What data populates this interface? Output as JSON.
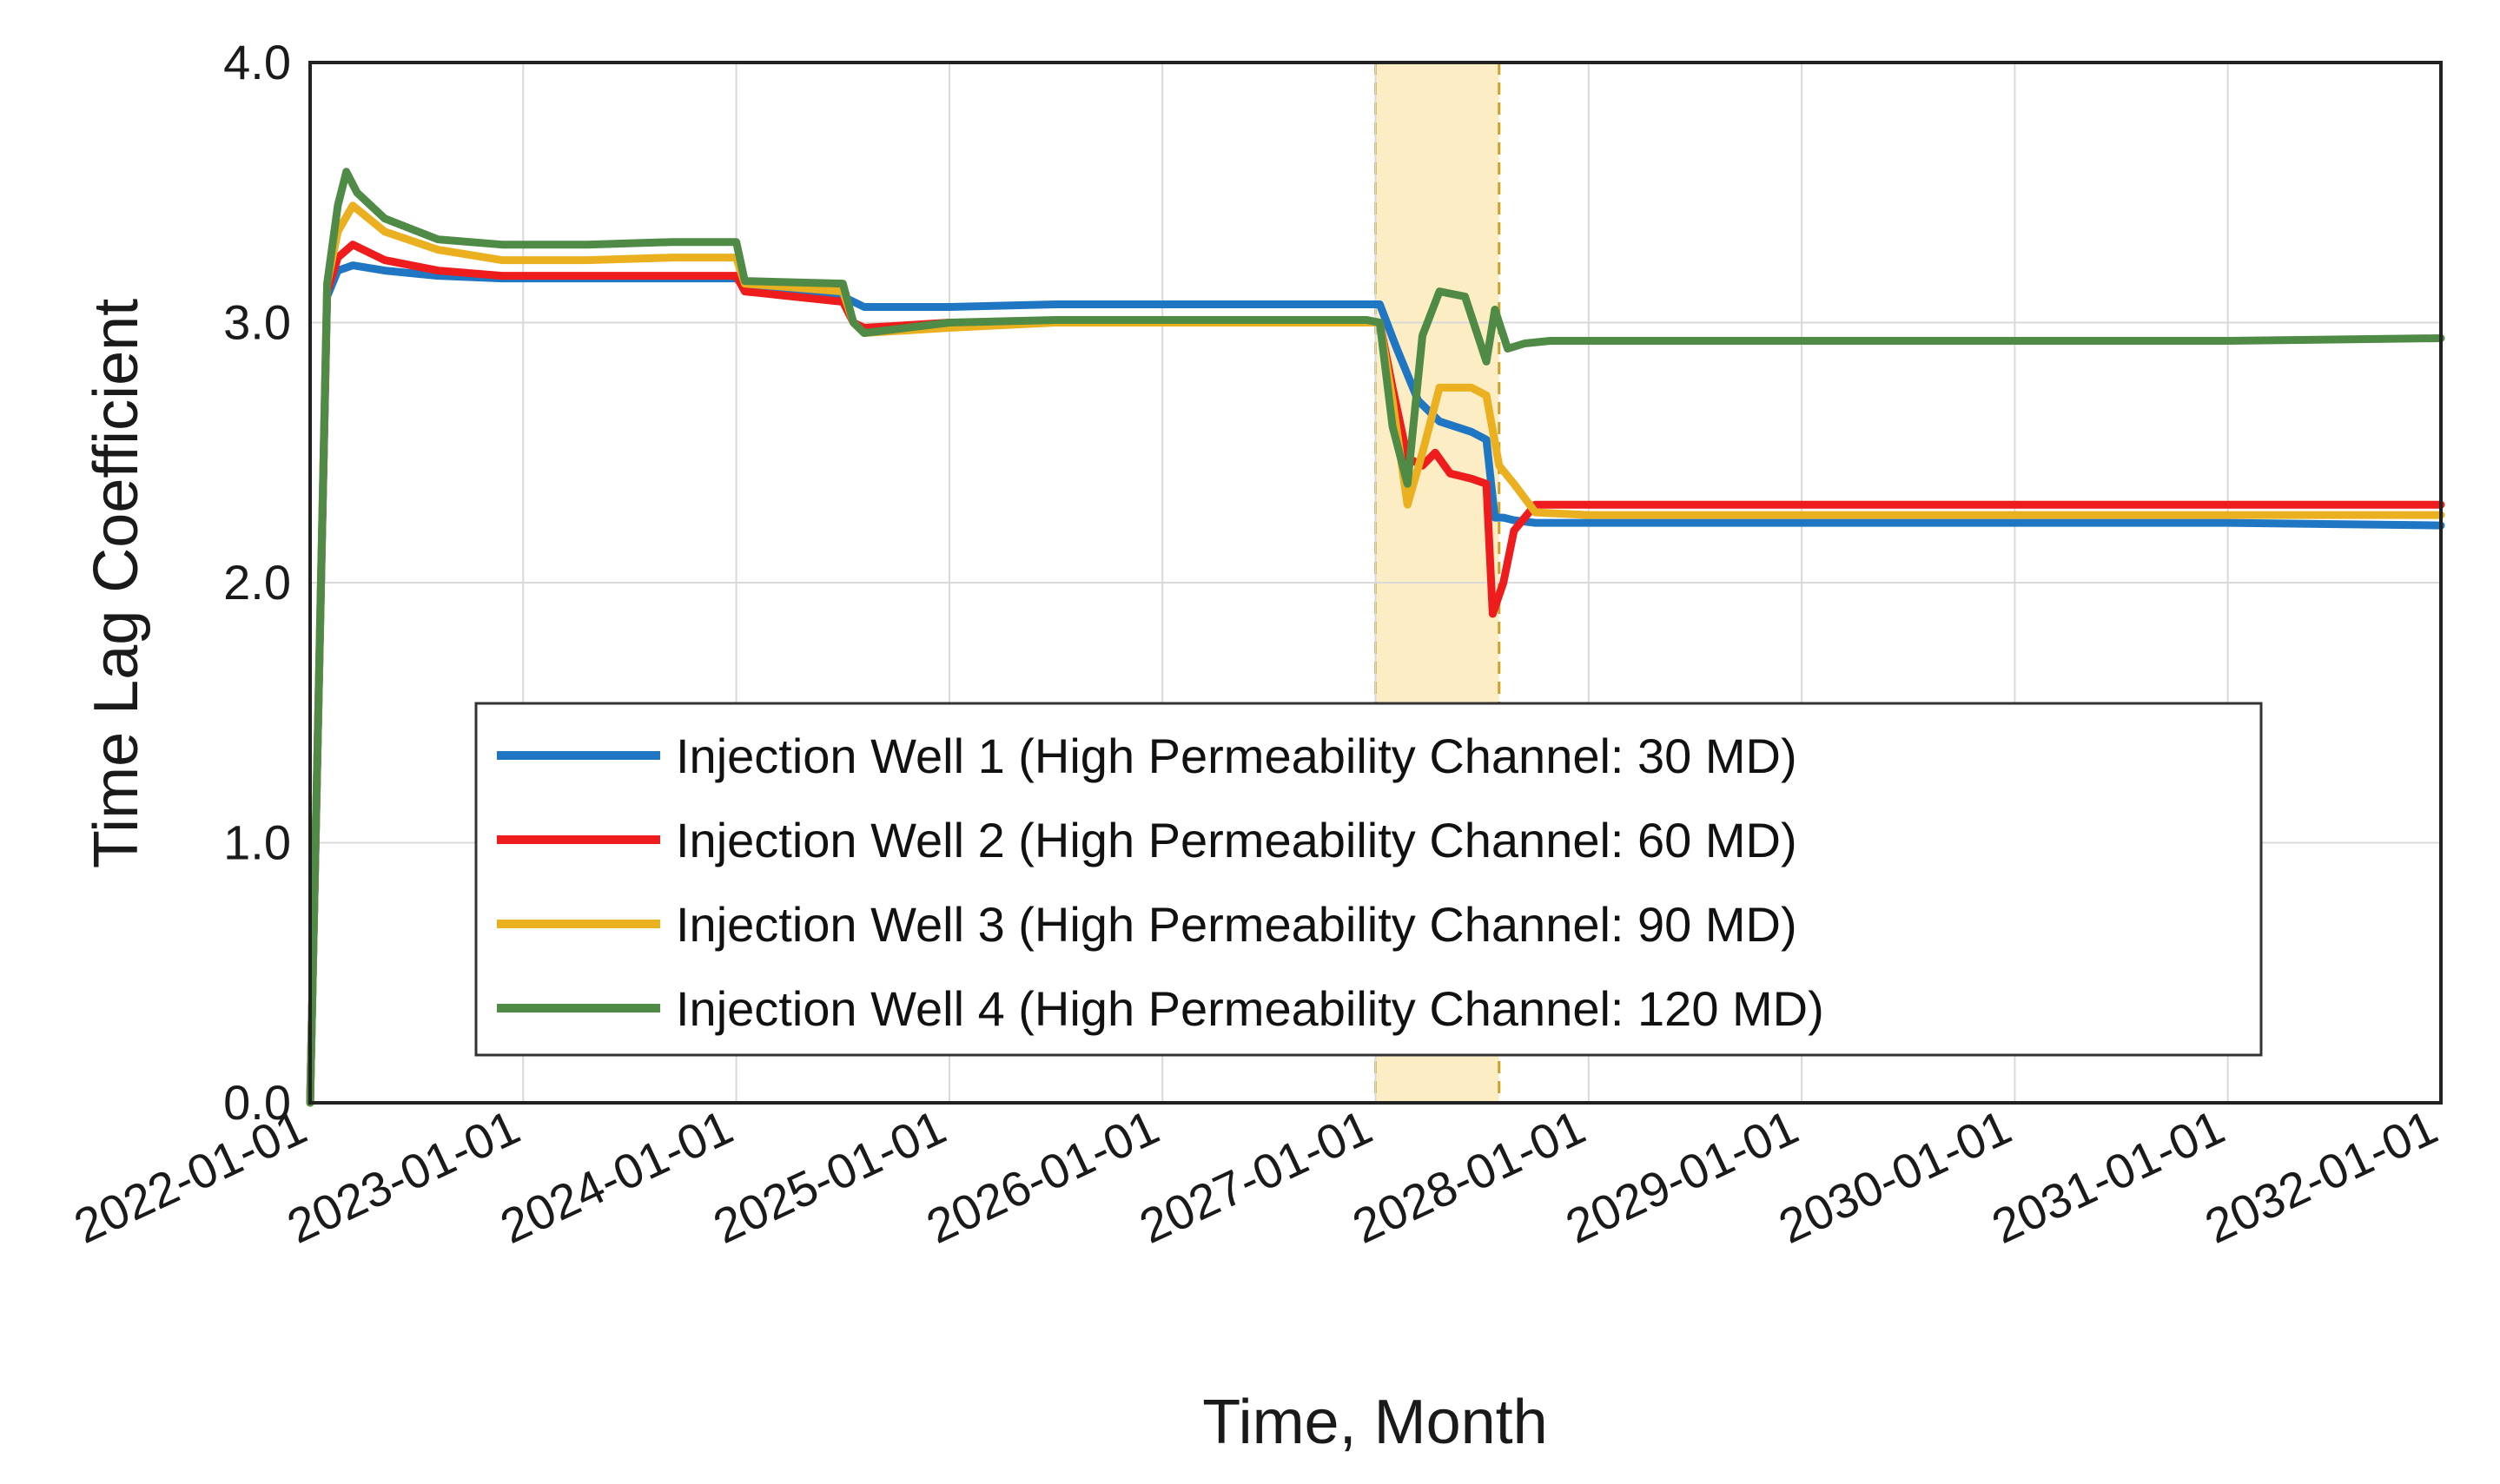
{
  "chart_data": {
    "type": "line",
    "title": "",
    "xlabel": "Time, Month",
    "ylabel": "Time Lag Coefficient",
    "ylim": [
      0,
      4
    ],
    "xlim": [
      2022.0,
      2032.0
    ],
    "grid": true,
    "legend_position": "lower-center",
    "y_ticks": [
      {
        "value": 0,
        "label": "0.0"
      },
      {
        "value": 1,
        "label": "1.0"
      },
      {
        "value": 2,
        "label": "2.0"
      },
      {
        "value": 3,
        "label": "3.0"
      },
      {
        "value": 4,
        "label": "4.0"
      }
    ],
    "x_ticks": [
      {
        "value": 2022,
        "label": "2022-01-01"
      },
      {
        "value": 2023,
        "label": "2023-01-01"
      },
      {
        "value": 2024,
        "label": "2024-01-01"
      },
      {
        "value": 2025,
        "label": "2025-01-01"
      },
      {
        "value": 2026,
        "label": "2026-01-01"
      },
      {
        "value": 2027,
        "label": "2027-01-01"
      },
      {
        "value": 2028,
        "label": "2028-01-01"
      },
      {
        "value": 2029,
        "label": "2029-01-01"
      },
      {
        "value": 2030,
        "label": "2030-01-01"
      },
      {
        "value": 2031,
        "label": "2031-01-01"
      },
      {
        "value": 2032,
        "label": "2032-01-01"
      }
    ],
    "highlight_region": {
      "x_start": 2027.0,
      "x_end": 2027.58,
      "color": "#fcedc4",
      "border_color": "#c9a227"
    },
    "series": [
      {
        "name": "Injection Well 1 (High Permeability Channel: 30 MD)",
        "color": "#1f77c4",
        "x": [
          2022.0,
          2022.08,
          2022.13,
          2022.2,
          2022.35,
          2022.6,
          2022.9,
          2023.3,
          2023.7,
          2024.0,
          2024.04,
          2024.5,
          2024.55,
          2024.6,
          2025.0,
          2025.5,
          2026.0,
          2026.5,
          2026.96,
          2027.02,
          2027.1,
          2027.2,
          2027.3,
          2027.45,
          2027.52,
          2027.56,
          2027.6,
          2027.65,
          2027.75,
          2028.0,
          2029.0,
          2030.0,
          2031.0,
          2032.0
        ],
        "values": [
          0.0,
          3.1,
          3.2,
          3.22,
          3.2,
          3.18,
          3.17,
          3.17,
          3.17,
          3.17,
          3.14,
          3.1,
          3.08,
          3.06,
          3.06,
          3.07,
          3.07,
          3.07,
          3.07,
          3.07,
          2.9,
          2.7,
          2.62,
          2.58,
          2.55,
          2.25,
          2.25,
          2.24,
          2.23,
          2.23,
          2.23,
          2.23,
          2.23,
          2.22
        ]
      },
      {
        "name": "Injection Well 2 (High Permeability Channel: 60 MD)",
        "color": "#ee1c1c",
        "x": [
          2022.0,
          2022.08,
          2022.13,
          2022.2,
          2022.35,
          2022.6,
          2022.9,
          2023.3,
          2023.7,
          2024.0,
          2024.04,
          2024.5,
          2024.55,
          2024.6,
          2025.0,
          2025.5,
          2026.0,
          2026.5,
          2026.96,
          2027.02,
          2027.08,
          2027.15,
          2027.22,
          2027.28,
          2027.35,
          2027.45,
          2027.52,
          2027.55,
          2027.6,
          2027.65,
          2027.75,
          2028.0,
          2029.0,
          2030.0,
          2031.0,
          2032.0
        ],
        "values": [
          0.0,
          3.12,
          3.25,
          3.3,
          3.24,
          3.2,
          3.18,
          3.18,
          3.18,
          3.18,
          3.12,
          3.08,
          3.0,
          2.98,
          3.0,
          3.0,
          3.0,
          3.0,
          3.0,
          3.0,
          2.75,
          2.48,
          2.45,
          2.5,
          2.42,
          2.4,
          2.38,
          1.88,
          2.0,
          2.2,
          2.3,
          2.3,
          2.3,
          2.3,
          2.3,
          2.3
        ]
      },
      {
        "name": "Injection Well 3 (High Permeability Channel: 90 MD)",
        "color": "#ebb020",
        "x": [
          2022.0,
          2022.08,
          2022.13,
          2022.2,
          2022.35,
          2022.6,
          2022.9,
          2023.3,
          2023.7,
          2024.0,
          2024.04,
          2024.5,
          2024.55,
          2024.6,
          2025.0,
          2025.5,
          2026.0,
          2026.5,
          2026.96,
          2027.02,
          2027.08,
          2027.15,
          2027.22,
          2027.3,
          2027.45,
          2027.52,
          2027.58,
          2027.65,
          2027.75,
          2028.0,
          2029.0,
          2030.0,
          2031.0,
          2032.0
        ],
        "values": [
          0.0,
          3.15,
          3.35,
          3.45,
          3.35,
          3.28,
          3.24,
          3.24,
          3.25,
          3.25,
          3.15,
          3.12,
          3.0,
          2.96,
          2.98,
          3.0,
          3.0,
          3.0,
          3.0,
          3.0,
          2.7,
          2.3,
          2.5,
          2.75,
          2.75,
          2.72,
          2.45,
          2.38,
          2.27,
          2.26,
          2.26,
          2.26,
          2.26,
          2.26
        ]
      },
      {
        "name": "Injection Well 4 (High Permeability Channel: 120 MD)",
        "color": "#4f8a46",
        "x": [
          2022.0,
          2022.08,
          2022.13,
          2022.17,
          2022.22,
          2022.35,
          2022.6,
          2022.9,
          2023.3,
          2023.7,
          2024.0,
          2024.04,
          2024.5,
          2024.55,
          2024.6,
          2025.0,
          2025.5,
          2026.0,
          2026.5,
          2026.96,
          2027.02,
          2027.08,
          2027.15,
          2027.22,
          2027.3,
          2027.42,
          2027.52,
          2027.56,
          2027.62,
          2027.7,
          2027.82,
          2028.0,
          2029.0,
          2030.0,
          2031.0,
          2032.0
        ],
        "values": [
          0.0,
          3.15,
          3.45,
          3.58,
          3.5,
          3.4,
          3.32,
          3.3,
          3.3,
          3.31,
          3.31,
          3.16,
          3.15,
          3.0,
          2.96,
          3.0,
          3.01,
          3.01,
          3.01,
          3.01,
          3.0,
          2.6,
          2.38,
          2.95,
          3.12,
          3.1,
          2.85,
          3.05,
          2.9,
          2.92,
          2.93,
          2.93,
          2.93,
          2.93,
          2.93,
          2.94
        ]
      }
    ]
  }
}
